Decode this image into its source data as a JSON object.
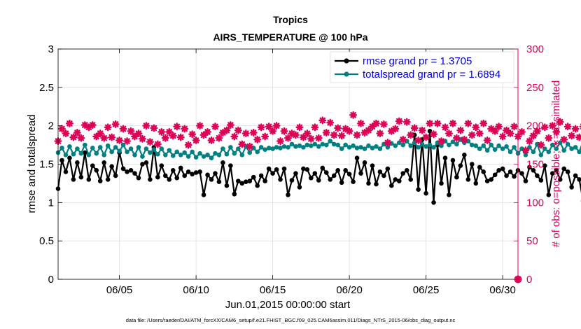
{
  "chart_data": {
    "type": "line",
    "title": "Tropics",
    "subtitle": "AIRS_TEMPERATURE @ 100 hPa",
    "xlabel": "Jun.01,2015 00:00:00 start",
    "ylabel": "rmse and totalspread",
    "ylabel_right": "# of obs: o=possible; ∗=assimilated",
    "footer": "data file: /Users/raeder/DAI/ATM_forcXX/CAM6_setup/f.e21.FHIST_BGC.f09_025.CAM6assim.011/Diags_NTrS_2015-06/obs_diag_output.nc",
    "x_range": [
      1.0,
      31.0
    ],
    "ylim": [
      0,
      3
    ],
    "ylim_right": [
      0,
      300
    ],
    "x_ticks": [
      5,
      10,
      15,
      20,
      25,
      30
    ],
    "x_tick_labels": [
      "06/05",
      "06/10",
      "06/15",
      "06/20",
      "06/25",
      "06/30"
    ],
    "y_ticks": [
      0,
      0.5,
      1,
      1.5,
      2,
      2.5,
      3
    ],
    "y_tick_labels": [
      "0",
      "0.5",
      "1",
      "1.5",
      "2",
      "2.5",
      "3"
    ],
    "y_ticks_right": [
      0,
      50,
      100,
      150,
      200,
      250,
      300
    ],
    "y_tick_labels_right": [
      "0",
      "50",
      "100",
      "150",
      "200",
      "250",
      "300"
    ],
    "legend_position": "top-right",
    "x_step": 0.25,
    "series": [
      {
        "name": "rmse grand pr = 1.3705",
        "color": "#000000",
        "axis": "left",
        "values": [
          1.18,
          1.55,
          1.4,
          1.58,
          1.3,
          1.52,
          1.33,
          1.65,
          1.3,
          1.48,
          1.42,
          1.28,
          1.52,
          1.3,
          1.47,
          1.35,
          1.65,
          1.44,
          1.4,
          1.42,
          1.38,
          1.32,
          1.5,
          1.52,
          1.3,
          1.72,
          1.33,
          1.48,
          1.35,
          1.3,
          1.42,
          1.32,
          1.45,
          1.35,
          1.4,
          1.37,
          1.39,
          1.4,
          1.1,
          1.36,
          1.3,
          1.38,
          1.27,
          1.52,
          1.22,
          1.48,
          1.11,
          1.28,
          1.25,
          1.27,
          1.28,
          1.33,
          1.22,
          1.35,
          1.28,
          1.44,
          1.38,
          1.43,
          1.3,
          1.44,
          1.1,
          1.29,
          1.38,
          1.2,
          1.44,
          1.43,
          1.32,
          1.38,
          1.29,
          1.45,
          1.39,
          1.3,
          1.35,
          1.42,
          1.26,
          1.42,
          1.37,
          1.27,
          1.58,
          1.38,
          1.52,
          1.25,
          1.48,
          1.24,
          1.4,
          1.35,
          1.44,
          1.22,
          1.3,
          1.28,
          1.38,
          1.42,
          1.3,
          1.88,
          1.17,
          1.82,
          1.12,
          1.93,
          1.0,
          1.75,
          1.25,
          1.58,
          1.1,
          1.55,
          1.33,
          1.48,
          1.62,
          1.3,
          1.5,
          1.25,
          1.46,
          1.4,
          1.28,
          1.3,
          1.36,
          1.42,
          1.44,
          1.35,
          1.4,
          1.34,
          1.42,
          1.38,
          1.28,
          1.46,
          1.42,
          1.35,
          1.29,
          1.48,
          1.1,
          1.38,
          1.42,
          1.3,
          1.44,
          1.4,
          1.2,
          1.35,
          1.3,
          1.02,
          1.42,
          1.22,
          1.44,
          1.2,
          1.32,
          1.25,
          1.4,
          1.28,
          1.34,
          1.22,
          1.4,
          1.22,
          1.38,
          1.2,
          1.48,
          1.49
        ]
      },
      {
        "name": "totalspread grand pr = 1.6894",
        "color": "#008080",
        "axis": "left",
        "values": [
          1.65,
          1.71,
          1.62,
          1.73,
          1.63,
          1.7,
          1.64,
          1.75,
          1.62,
          1.71,
          1.64,
          1.72,
          1.62,
          1.74,
          1.66,
          1.72,
          1.67,
          1.75,
          1.66,
          1.7,
          1.62,
          1.72,
          1.6,
          1.7,
          1.65,
          1.69,
          1.63,
          1.7,
          1.62,
          1.68,
          1.61,
          1.66,
          1.62,
          1.65,
          1.6,
          1.66,
          1.59,
          1.64,
          1.6,
          1.62,
          1.58,
          1.64,
          1.62,
          1.7,
          1.63,
          1.72,
          1.64,
          1.7,
          1.62,
          1.73,
          1.65,
          1.71,
          1.66,
          1.72,
          1.69,
          1.71,
          1.7,
          1.72,
          1.71,
          1.73,
          1.72,
          1.76,
          1.73,
          1.74,
          1.72,
          1.75,
          1.74,
          1.76,
          1.73,
          1.76,
          1.75,
          1.8,
          1.76,
          1.75,
          1.7,
          1.75,
          1.72,
          1.74,
          1.71,
          1.72,
          1.7,
          1.74,
          1.71,
          1.73,
          1.7,
          1.76,
          1.72,
          1.77,
          1.74,
          1.78,
          1.75,
          1.8,
          1.74,
          1.78,
          1.72,
          1.76,
          1.73,
          1.75,
          1.72,
          1.78,
          1.74,
          1.8,
          1.75,
          1.79,
          1.76,
          1.82,
          1.78,
          1.8,
          1.75,
          1.74,
          1.7,
          1.74,
          1.68,
          1.75,
          1.69,
          1.74,
          1.7,
          1.73,
          1.66,
          1.72,
          1.64,
          1.7,
          1.62,
          1.72,
          1.66,
          1.76,
          1.62,
          1.7,
          1.66,
          1.75,
          1.7,
          1.78,
          1.68,
          1.76,
          1.7,
          1.72,
          1.66,
          1.8,
          1.72,
          1.88,
          1.74,
          1.85,
          1.7,
          1.88,
          1.78,
          1.86,
          1.76,
          1.82,
          1.74,
          1.78,
          1.7,
          1.78,
          1.72,
          1.58,
          1.56
        ]
      },
      {
        "name": "# obs assimilated",
        "color": "#dd0055",
        "axis": "right",
        "values": [
          180,
          196,
          190,
          203,
          185,
          191,
          184,
          201,
          198,
          201,
          186,
          190,
          184,
          198,
          185,
          202,
          181,
          196,
          180,
          193,
          186,
          190,
          183,
          200,
          179,
          197,
          176,
          192,
          184,
          192,
          187,
          199,
          185,
          196,
          175,
          189,
          181,
          200,
          188,
          192,
          181,
          199,
          184,
          191,
          194,
          201,
          186,
          194,
          176,
          190,
          173,
          191,
          182,
          198,
          186,
          199,
          193,
          200,
          180,
          193,
          184,
          190,
          188,
          198,
          185,
          190,
          183,
          198,
          184,
          207,
          191,
          204,
          188,
          197,
          187,
          196,
          193,
          214,
          188,
          203,
          191,
          194,
          199,
          203,
          190,
          202,
          178,
          193,
          196,
          206,
          182,
          205,
          188,
          197,
          181,
          194,
          185,
          203,
          189,
          203,
          180,
          198,
          190,
          203,
          184,
          194,
          182,
          203,
          188,
          198,
          190,
          203,
          181,
          196,
          193,
          199,
          186,
          194,
          190,
          199,
          186,
          192,
          168,
          180,
          187,
          193,
          175,
          198,
          184,
          200,
          192,
          205,
          182,
          199,
          187,
          196,
          185,
          199,
          171,
          191,
          185,
          196,
          179,
          192,
          180,
          193,
          183,
          192,
          182,
          189,
          178,
          198,
          187,
          189,
          187,
          186,
          218
        ]
      },
      {
        "name": "# obs possible",
        "color": "#dd0055",
        "axis": "right",
        "values": [
          0
        ]
      }
    ]
  }
}
